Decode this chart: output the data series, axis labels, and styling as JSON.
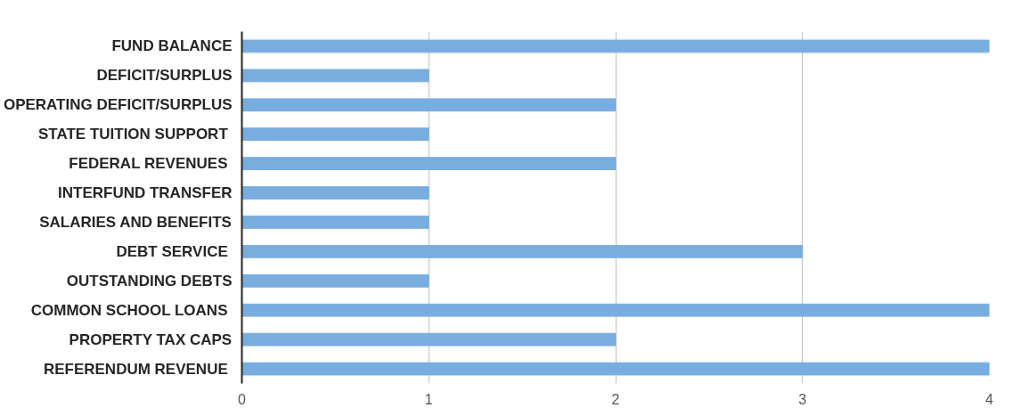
{
  "chart_data": {
    "type": "bar",
    "orientation": "horizontal",
    "categories": [
      "FUND BALANCE",
      "DEFICIT/SURPLUS",
      "OPERATING DEFICIT/SURPLUS",
      "STATE TUITION SUPPORT ",
      "FEDERAL REVENUES ",
      "INTERFUND TRANSFER",
      "SALARIES AND BENEFITS",
      "DEBT SERVICE ",
      "OUTSTANDING DEBTS",
      "COMMON SCHOOL LOANS ",
      "PROPERTY TAX CAPS",
      "REFERENDUM REVENUE "
    ],
    "values": [
      4,
      1,
      2,
      1,
      2,
      1,
      1,
      3,
      1,
      4,
      2,
      4
    ],
    "color": "#7aaddf",
    "xlim": [
      0,
      4
    ],
    "xticks": [
      0,
      1,
      2,
      3,
      4
    ],
    "grid": "x"
  }
}
